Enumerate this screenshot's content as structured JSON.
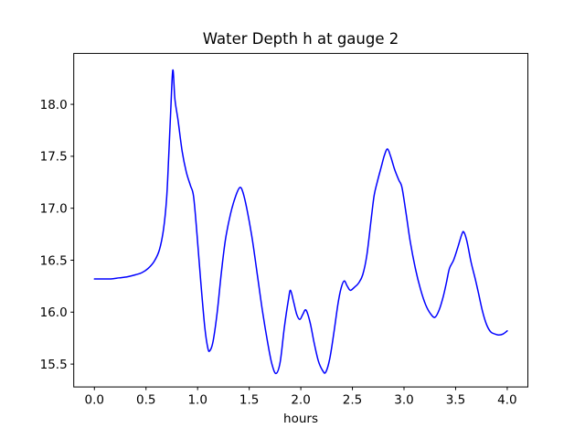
{
  "chart_data": {
    "type": "line",
    "title": "Water Depth h at gauge 2",
    "xlabel": "hours",
    "ylabel": "",
    "xlim": [
      -0.2,
      4.2
    ],
    "ylim": [
      15.28,
      18.49
    ],
    "xticks": [
      0.0,
      0.5,
      1.0,
      1.5,
      2.0,
      2.5,
      3.0,
      3.5,
      4.0
    ],
    "xtick_labels": [
      "0.0",
      "0.5",
      "1.0",
      "1.5",
      "2.0",
      "2.5",
      "3.0",
      "3.5",
      "4.0"
    ],
    "yticks": [
      15.5,
      16.0,
      16.5,
      17.0,
      17.5,
      18.0
    ],
    "ytick_labels": [
      "15.5",
      "16.0",
      "16.5",
      "17.0",
      "17.5",
      "18.0"
    ],
    "grid": false,
    "legend": null,
    "series": [
      {
        "name": "water-depth-h",
        "color": "#0000ff",
        "line_width": 1.5,
        "points": [
          [
            0.0,
            16.32
          ],
          [
            0.08,
            16.32
          ],
          [
            0.16,
            16.32
          ],
          [
            0.24,
            16.33
          ],
          [
            0.32,
            16.34
          ],
          [
            0.4,
            16.36
          ],
          [
            0.46,
            16.38
          ],
          [
            0.52,
            16.42
          ],
          [
            0.58,
            16.49
          ],
          [
            0.63,
            16.6
          ],
          [
            0.67,
            16.8
          ],
          [
            0.7,
            17.1
          ],
          [
            0.72,
            17.5
          ],
          [
            0.74,
            17.95
          ],
          [
            0.76,
            18.33
          ],
          [
            0.78,
            18.05
          ],
          [
            0.81,
            17.85
          ],
          [
            0.85,
            17.55
          ],
          [
            0.89,
            17.35
          ],
          [
            0.93,
            17.22
          ],
          [
            0.96,
            17.12
          ],
          [
            0.99,
            16.8
          ],
          [
            1.03,
            16.3
          ],
          [
            1.07,
            15.85
          ],
          [
            1.1,
            15.65
          ],
          [
            1.12,
            15.63
          ],
          [
            1.15,
            15.72
          ],
          [
            1.19,
            16.0
          ],
          [
            1.23,
            16.38
          ],
          [
            1.27,
            16.7
          ],
          [
            1.32,
            16.95
          ],
          [
            1.37,
            17.12
          ],
          [
            1.41,
            17.2
          ],
          [
            1.44,
            17.15
          ],
          [
            1.48,
            16.98
          ],
          [
            1.53,
            16.7
          ],
          [
            1.58,
            16.35
          ],
          [
            1.63,
            16.0
          ],
          [
            1.68,
            15.7
          ],
          [
            1.72,
            15.5
          ],
          [
            1.76,
            15.41
          ],
          [
            1.8,
            15.52
          ],
          [
            1.84,
            15.85
          ],
          [
            1.88,
            16.12
          ],
          [
            1.9,
            16.21
          ],
          [
            1.93,
            16.1
          ],
          [
            1.96,
            15.98
          ],
          [
            1.99,
            15.93
          ],
          [
            2.02,
            15.98
          ],
          [
            2.05,
            16.02
          ],
          [
            2.09,
            15.9
          ],
          [
            2.13,
            15.7
          ],
          [
            2.17,
            15.53
          ],
          [
            2.21,
            15.44
          ],
          [
            2.24,
            15.42
          ],
          [
            2.28,
            15.55
          ],
          [
            2.32,
            15.8
          ],
          [
            2.36,
            16.08
          ],
          [
            2.39,
            16.23
          ],
          [
            2.42,
            16.3
          ],
          [
            2.45,
            16.25
          ],
          [
            2.48,
            16.21
          ],
          [
            2.52,
            16.24
          ],
          [
            2.56,
            16.28
          ],
          [
            2.6,
            16.36
          ],
          [
            2.64,
            16.55
          ],
          [
            2.68,
            16.88
          ],
          [
            2.71,
            17.12
          ],
          [
            2.74,
            17.25
          ],
          [
            2.78,
            17.4
          ],
          [
            2.81,
            17.51
          ],
          [
            2.84,
            17.57
          ],
          [
            2.87,
            17.5
          ],
          [
            2.91,
            17.37
          ],
          [
            2.95,
            17.27
          ],
          [
            2.98,
            17.2
          ],
          [
            3.02,
            16.95
          ],
          [
            3.06,
            16.68
          ],
          [
            3.11,
            16.42
          ],
          [
            3.16,
            16.22
          ],
          [
            3.21,
            16.07
          ],
          [
            3.26,
            15.98
          ],
          [
            3.3,
            15.95
          ],
          [
            3.34,
            16.02
          ],
          [
            3.38,
            16.15
          ],
          [
            3.41,
            16.28
          ],
          [
            3.44,
            16.42
          ],
          [
            3.48,
            16.5
          ],
          [
            3.52,
            16.62
          ],
          [
            3.56,
            16.75
          ],
          [
            3.58,
            16.77
          ],
          [
            3.61,
            16.68
          ],
          [
            3.65,
            16.48
          ],
          [
            3.69,
            16.32
          ],
          [
            3.72,
            16.19
          ],
          [
            3.76,
            16.01
          ],
          [
            3.8,
            15.88
          ],
          [
            3.84,
            15.81
          ],
          [
            3.88,
            15.79
          ],
          [
            3.92,
            15.78
          ],
          [
            3.96,
            15.79
          ],
          [
            4.0,
            15.82
          ]
        ]
      }
    ]
  },
  "colors": {
    "line": "#0000ff",
    "text": "#000000",
    "background": "#ffffff",
    "spine": "#000000"
  }
}
